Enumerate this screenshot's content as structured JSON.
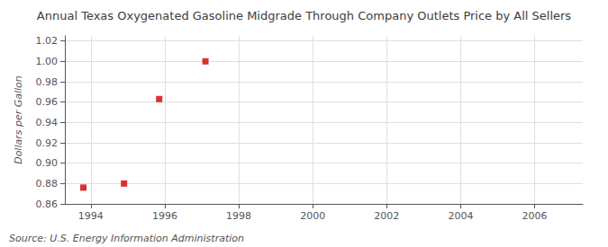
{
  "chart_data": {
    "type": "scatter",
    "title": "Annual Texas Oxygenated Gasoline Midgrade Through Company Outlets Price by All Sellers",
    "ylabel": "Dollars per Gallon",
    "annotation": "Source: U.S. Energy Information Administration",
    "x": [
      1993.8,
      1994.9,
      1995.85,
      1997.1
    ],
    "values": [
      0.876,
      0.88,
      0.963,
      1.0
    ],
    "color": "#cc0000",
    "marker": "square",
    "xlim": [
      1993.3,
      2007.3
    ],
    "ylim": [
      0.86,
      1.025
    ],
    "xticks": [
      1994,
      1996,
      1998,
      2000,
      2002,
      2004,
      2006
    ],
    "yticks": [
      0.86,
      0.88,
      {
        "value": 0.9,
        "label": "0.90"
      },
      0.92,
      0.94,
      0.96,
      0.98,
      {
        "value": 1.0,
        "label": "1.00"
      },
      1.02
    ],
    "grid": true
  }
}
